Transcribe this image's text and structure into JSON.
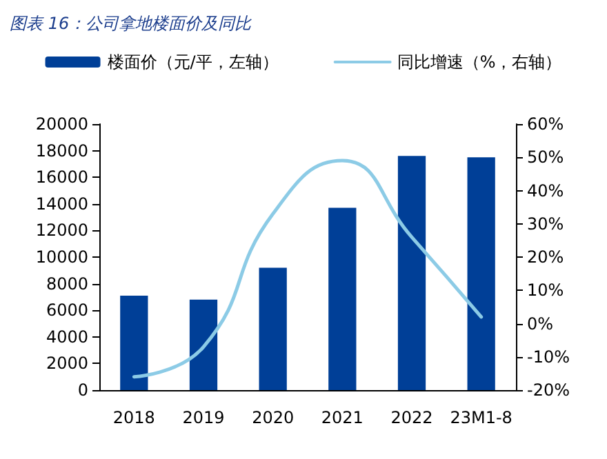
{
  "chart_data": {
    "type": "bar",
    "title": "图表 16：公司拿地楼面价及同比",
    "categories": [
      "2018",
      "2019",
      "2020",
      "2021",
      "2022",
      "23M1-8"
    ],
    "series": [
      {
        "name": "楼面价（元/平，左轴）",
        "color": "#003f97",
        "values": [
          7100,
          6800,
          9200,
          13700,
          17600,
          17500
        ]
      },
      {
        "name": "同比增速（%，右轴）",
        "type": "line",
        "axis": "y2",
        "color": "#8ccbe6",
        "values": [
          -16,
          -7,
          33,
          49,
          26,
          2
        ]
      }
    ],
    "ylim": [
      0,
      20000
    ],
    "yticks": [
      0,
      2000,
      4000,
      6000,
      8000,
      10000,
      12000,
      14000,
      16000,
      18000,
      20000
    ],
    "y2lim": [
      -20,
      60
    ],
    "y2ticks": [
      {
        "value": -20,
        "label": "-20%"
      },
      {
        "value": -10,
        "label": "-10%"
      },
      {
        "value": 0,
        "label": "0%"
      },
      {
        "value": 10,
        "label": "10%"
      },
      {
        "value": 20,
        "label": "20%"
      },
      {
        "value": 30,
        "label": "30%"
      },
      {
        "value": 40,
        "label": "40%"
      },
      {
        "value": 50,
        "label": "50%"
      },
      {
        "value": 60,
        "label": "60%"
      }
    ],
    "legend": "top",
    "marker": "none",
    "grid": false
  }
}
